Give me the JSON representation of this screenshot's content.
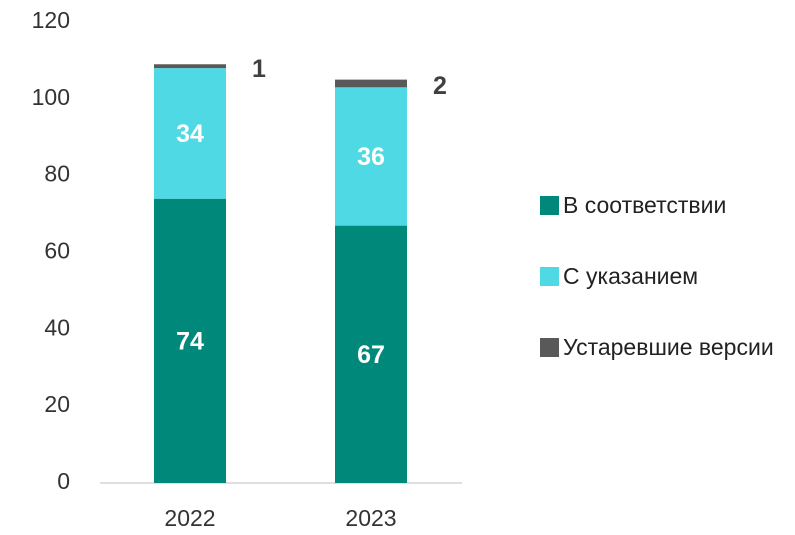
{
  "chart_data": {
    "type": "bar",
    "stacked": true,
    "categories": [
      "2022",
      "2023"
    ],
    "series": [
      {
        "name": "В соответствии",
        "color": "#00887a",
        "values": [
          74,
          67
        ]
      },
      {
        "name": "С указанием",
        "color": "#4fd9e4",
        "values": [
          34,
          36
        ]
      },
      {
        "name": "Устаревшие версии",
        "color": "#595959",
        "values": [
          1,
          2
        ]
      }
    ],
    "ylim": [
      0,
      120
    ],
    "yticks": [
      0,
      20,
      40,
      60,
      80,
      100,
      120
    ],
    "grid": false,
    "legend": "right"
  }
}
